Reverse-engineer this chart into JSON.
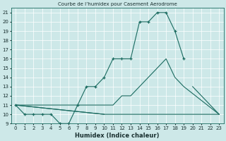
{
  "title": "Courbe de l’humidex pour Casement Aerodrome",
  "xlabel": "Humidex (Indice chaleur)",
  "xlim": [
    -0.5,
    23.5
  ],
  "ylim": [
    9,
    21.5
  ],
  "yticks": [
    9,
    10,
    11,
    12,
    13,
    14,
    15,
    16,
    17,
    18,
    19,
    20,
    21
  ],
  "xticks": [
    0,
    1,
    2,
    3,
    4,
    5,
    6,
    7,
    8,
    9,
    10,
    11,
    12,
    13,
    14,
    15,
    16,
    17,
    18,
    19,
    20,
    21,
    22,
    23
  ],
  "bg_color": "#cde8e8",
  "line_color": "#1a6b60",
  "grid_color": "#ffffff",
  "series1_x": [
    0,
    1,
    2,
    3,
    4,
    5,
    6,
    7,
    8,
    9,
    10,
    11,
    12,
    13,
    14,
    15,
    16,
    17,
    18,
    19,
    20,
    21,
    22,
    23
  ],
  "series1_y": [
    11,
    10,
    10,
    10,
    10,
    9,
    9,
    11,
    13,
    13,
    14,
    16,
    16,
    16,
    20,
    20,
    21,
    21,
    19,
    16,
    null,
    null,
    null,
    null
  ],
  "series2_x": [
    0,
    10,
    11,
    12,
    13,
    14,
    15,
    16,
    17,
    18,
    19,
    20,
    21,
    22,
    23
  ],
  "series2_y": [
    11,
    10,
    10,
    10,
    10,
    10,
    10,
    10,
    10,
    10,
    10,
    10,
    10,
    10,
    10
  ],
  "series3_x": [
    0,
    10,
    11,
    12,
    13,
    14,
    15,
    16,
    17,
    18,
    19,
    20,
    23
  ],
  "series3_y": [
    11,
    11,
    11,
    12,
    12,
    13,
    14,
    15,
    16,
    14,
    13,
    null,
    10
  ]
}
